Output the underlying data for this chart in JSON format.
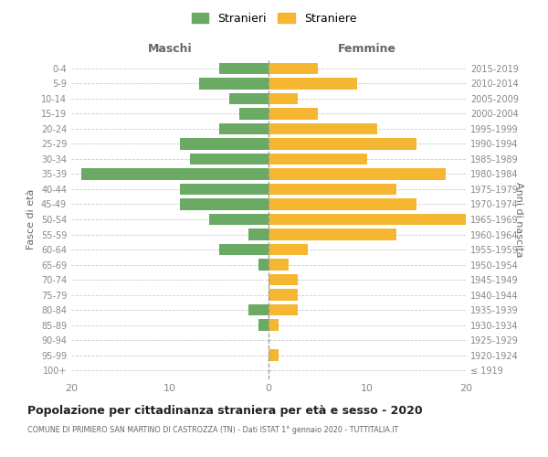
{
  "age_groups": [
    "100+",
    "95-99",
    "90-94",
    "85-89",
    "80-84",
    "75-79",
    "70-74",
    "65-69",
    "60-64",
    "55-59",
    "50-54",
    "45-49",
    "40-44",
    "35-39",
    "30-34",
    "25-29",
    "20-24",
    "15-19",
    "10-14",
    "5-9",
    "0-4"
  ],
  "birth_years": [
    "≤ 1919",
    "1920-1924",
    "1925-1929",
    "1930-1934",
    "1935-1939",
    "1940-1944",
    "1945-1949",
    "1950-1954",
    "1955-1959",
    "1960-1964",
    "1965-1969",
    "1970-1974",
    "1975-1979",
    "1980-1984",
    "1985-1989",
    "1990-1994",
    "1995-1999",
    "2000-2004",
    "2005-2009",
    "2010-2014",
    "2015-2019"
  ],
  "maschi": [
    0,
    0,
    0,
    1,
    2,
    0,
    0,
    1,
    5,
    2,
    6,
    9,
    9,
    19,
    8,
    9,
    5,
    3,
    4,
    7,
    5
  ],
  "femmine": [
    0,
    1,
    0,
    1,
    3,
    3,
    3,
    2,
    4,
    13,
    20,
    15,
    13,
    18,
    10,
    15,
    11,
    5,
    3,
    9,
    5
  ],
  "color_maschi": "#6aaa64",
  "color_femmine": "#f5b731",
  "title": "Popolazione per cittadinanza straniera per età e sesso - 2020",
  "subtitle": "COMUNE DI PRIMIERO SAN MARTINO DI CASTROZZA (TN) - Dati ISTAT 1° gennaio 2020 - TUTTITALIA.IT",
  "xlabel_left": "Maschi",
  "xlabel_right": "Femmine",
  "ylabel_left": "Fasce di età",
  "ylabel_right": "Anni di nascita",
  "legend_maschi": "Stranieri",
  "legend_femmine": "Straniere",
  "xlim": 20,
  "background_color": "#ffffff",
  "grid_color": "#cccccc"
}
